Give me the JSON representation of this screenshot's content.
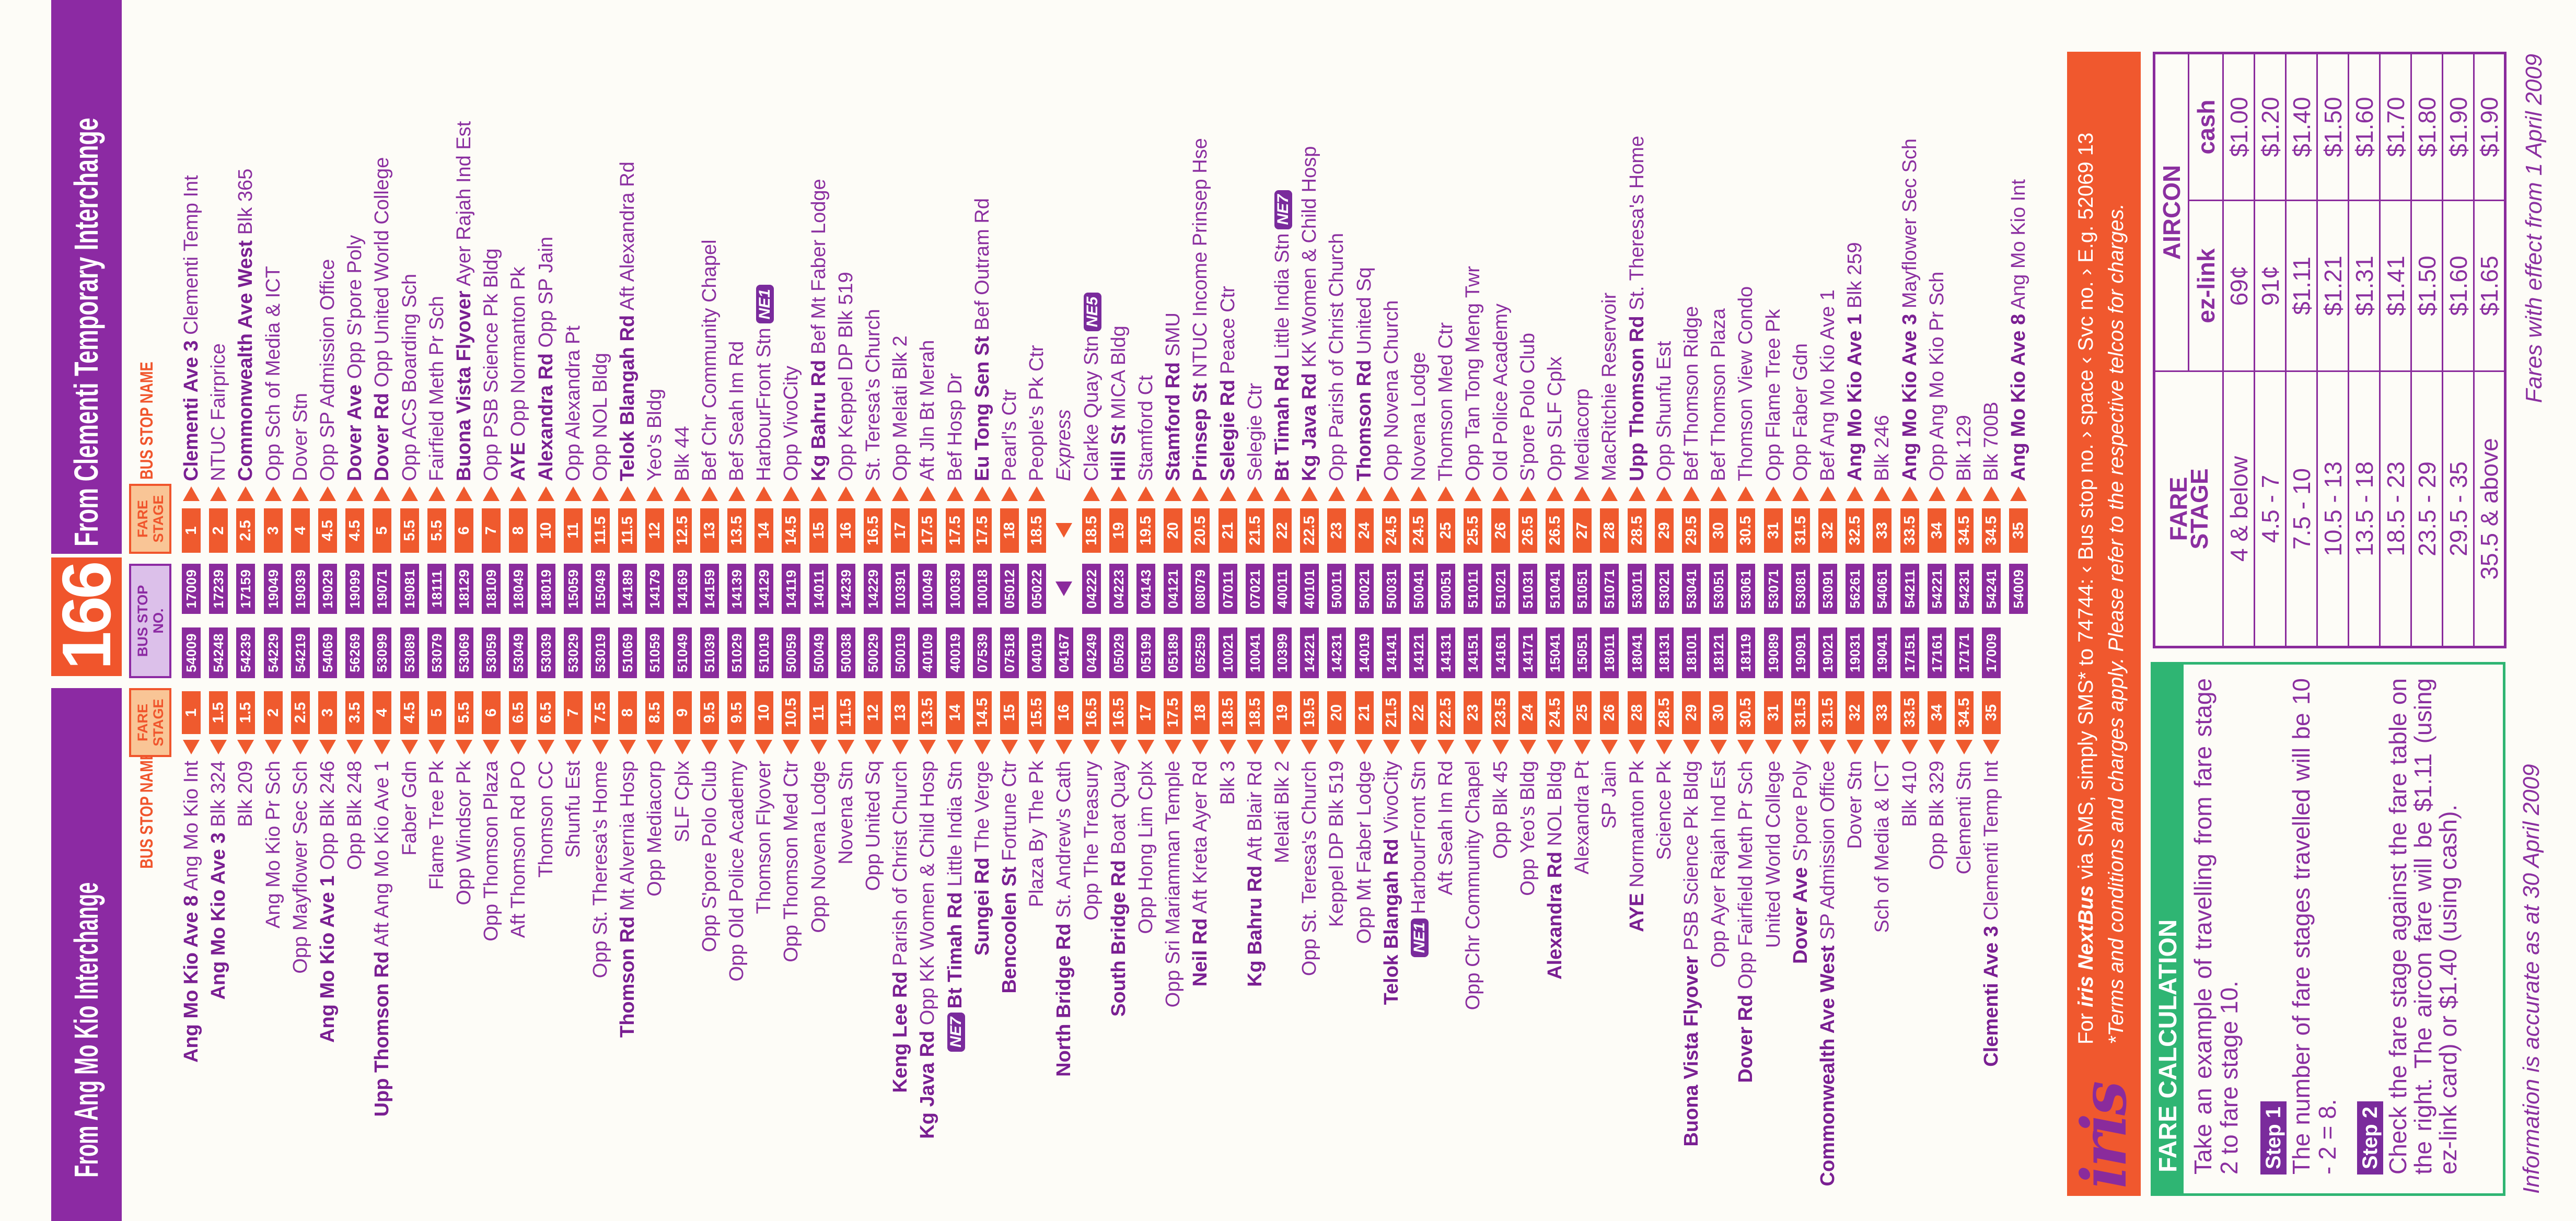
{
  "header": {
    "left_title": "From Ang Mo Kio Interchange",
    "route": "166",
    "right_title": "From Clementi Temporary Interchange"
  },
  "column_headers": {
    "name": "BUS STOP NAME",
    "fare_l1": "FARE",
    "fare_l2": "STAGE",
    "stop_l1": "BUS STOP",
    "stop_l2": "NO."
  },
  "colors": {
    "purple": "#8c2aa3",
    "orange": "#f0552c",
    "green": "#2fb573"
  },
  "left": {
    "stops": [
      {
        "r": "Ang Mo Kio Ave 8",
        "d": "Ang Mo Kio Int",
        "f": "1",
        "n": "54009"
      },
      {
        "r": "Ang Mo Kio Ave 3",
        "d": "Blk 324",
        "f": "1.5",
        "n": "54248"
      },
      {
        "r": "",
        "d": "Blk 209",
        "f": "1.5",
        "n": "54239"
      },
      {
        "r": "",
        "d": "Ang Mo Kio Pr Sch",
        "f": "2",
        "n": "54229"
      },
      {
        "r": "",
        "d": "Opp Mayflower Sec Sch",
        "f": "2.5",
        "n": "54219"
      },
      {
        "r": "Ang Mo Kio Ave 1",
        "d": "Opp Blk 246",
        "f": "3",
        "n": "54069"
      },
      {
        "r": "",
        "d": "Opp Blk 248",
        "f": "3.5",
        "n": "56269"
      },
      {
        "r": "Upp Thomson Rd",
        "d": "Aft Ang Mo Kio Ave 1",
        "f": "4",
        "n": "53099"
      },
      {
        "r": "",
        "d": "Faber Gdn",
        "f": "4.5",
        "n": "53089"
      },
      {
        "r": "",
        "d": "Flame Tree Pk",
        "f": "5",
        "n": "53079"
      },
      {
        "r": "",
        "d": "Opp Windsor Pk",
        "f": "5.5",
        "n": "53069"
      },
      {
        "r": "",
        "d": "Opp Thomson Plaza",
        "f": "6",
        "n": "53059"
      },
      {
        "r": "",
        "d": "Aft Thomson Rd PO",
        "f": "6.5",
        "n": "53049"
      },
      {
        "r": "",
        "d": "Thomson CC",
        "f": "6.5",
        "n": "53039"
      },
      {
        "r": "",
        "d": "Shunfu Est",
        "f": "7",
        "n": "53029"
      },
      {
        "r": "",
        "d": "Opp St. Theresa's Home",
        "f": "7.5",
        "n": "53019"
      },
      {
        "r": "Thomson Rd",
        "d": "Mt Alvernia Hosp",
        "f": "8",
        "n": "51069"
      },
      {
        "r": "",
        "d": "Opp Mediacorp",
        "f": "8.5",
        "n": "51059"
      },
      {
        "r": "",
        "d": "SLF Cplx",
        "f": "9",
        "n": "51049"
      },
      {
        "r": "",
        "d": "Opp S'pore Polo Club",
        "f": "9.5",
        "n": "51039"
      },
      {
        "r": "",
        "d": "Opp Old Police Academy",
        "f": "9.5",
        "n": "51029"
      },
      {
        "r": "",
        "d": "Thomson Flyover",
        "f": "10",
        "n": "51019"
      },
      {
        "r": "",
        "d": "Opp Thomson Med Ctr",
        "f": "10.5",
        "n": "50059"
      },
      {
        "r": "",
        "d": "Opp Novena Lodge",
        "f": "11",
        "n": "50049"
      },
      {
        "r": "",
        "d": "Novena Stn",
        "f": "11.5",
        "n": "50038"
      },
      {
        "r": "",
        "d": "Opp United Sq",
        "f": "12",
        "n": "50029"
      },
      {
        "r": "Keng Lee Rd",
        "d": "Parish of Christ Church",
        "f": "13",
        "n": "50019"
      },
      {
        "r": "Kg Java Rd",
        "d": "Opp KK Women & Child Hosp",
        "f": "13.5",
        "n": "40109"
      },
      {
        "r": "Bt Timah Rd",
        "d": "Little India Stn",
        "f": "14",
        "n": "40019",
        "mrt": "NE7"
      },
      {
        "r": "Sungei Rd",
        "d": "The Verge",
        "f": "14.5",
        "n": "07539"
      },
      {
        "r": "Bencoolen St",
        "d": "Fortune Ctr",
        "f": "15",
        "n": "07518"
      },
      {
        "r": "",
        "d": "Plaza By The Pk",
        "f": "15.5",
        "n": "04019"
      },
      {
        "r": "North Bridge Rd",
        "d": "St. Andrew's Cath",
        "f": "16",
        "n": "04167"
      },
      {
        "r": "",
        "d": "Opp The Treasury",
        "f": "16.5",
        "n": "04249"
      },
      {
        "r": "South Bridge Rd",
        "d": "Boat Quay",
        "f": "16.5",
        "n": "05029"
      },
      {
        "r": "",
        "d": "Opp Hong Lim Cplx",
        "f": "17",
        "n": "05199"
      },
      {
        "r": "",
        "d": "Opp Sri Mariamman Temple",
        "f": "17.5",
        "n": "05189"
      },
      {
        "r": "Neil Rd",
        "d": "Aft Kreta Ayer Rd",
        "f": "18",
        "n": "05259"
      },
      {
        "r": "",
        "d": "Blk 3",
        "f": "18.5",
        "n": "10021"
      },
      {
        "r": "Kg Bahru Rd",
        "d": "Aft Blair Rd",
        "f": "18.5",
        "n": "10041"
      },
      {
        "r": "",
        "d": "Melati Blk 2",
        "f": "19",
        "n": "10399"
      },
      {
        "r": "",
        "d": "Opp St. Teresa's Church",
        "f": "19.5",
        "n": "14221"
      },
      {
        "r": "",
        "d": "Keppel DP Blk 519",
        "f": "20",
        "n": "14231"
      },
      {
        "r": "",
        "d": "Opp Mt Faber Lodge",
        "f": "21",
        "n": "14019"
      },
      {
        "r": "Telok Blangah Rd",
        "d": "VivoCity",
        "f": "21.5",
        "n": "14141"
      },
      {
        "r": "",
        "d": "HarbourFront Stn",
        "f": "22",
        "n": "14121",
        "mrt": "NE1"
      },
      {
        "r": "",
        "d": "Aft Seah Im Rd",
        "f": "22.5",
        "n": "14131"
      },
      {
        "r": "",
        "d": "Opp Chr Community Chapel",
        "f": "23",
        "n": "14151"
      },
      {
        "r": "",
        "d": "Opp Blk 45",
        "f": "23.5",
        "n": "14161"
      },
      {
        "r": "",
        "d": "Opp Yeo's Bldg",
        "f": "24",
        "n": "14171"
      },
      {
        "r": "Alexandra Rd",
        "d": "NOL Bldg",
        "f": "24.5",
        "n": "15041"
      },
      {
        "r": "",
        "d": "Alexandra Pt",
        "f": "25",
        "n": "15051"
      },
      {
        "r": "",
        "d": "SP Jain",
        "f": "26",
        "n": "18011"
      },
      {
        "r": "AYE",
        "d": "Normanton Pk",
        "f": "28",
        "n": "18041"
      },
      {
        "r": "",
        "d": "Science Pk",
        "f": "28.5",
        "n": "18131"
      },
      {
        "r": "Buona Vista Flyover",
        "d": "PSB Science Pk Bldg",
        "f": "29",
        "n": "18101"
      },
      {
        "r": "",
        "d": "Opp Ayer Rajah Ind Est",
        "f": "30",
        "n": "18121"
      },
      {
        "r": "Dover Rd",
        "d": "Opp Fairfield Meth Pr Sch",
        "f": "30.5",
        "n": "18119"
      },
      {
        "r": "",
        "d": "United World College",
        "f": "31",
        "n": "19089"
      },
      {
        "r": "Dover Ave",
        "d": "S'pore Poly",
        "f": "31.5",
        "n": "19091"
      },
      {
        "r": "Commonwealth Ave West",
        "d": "SP Admission Office",
        "f": "31.5",
        "n": "19021"
      },
      {
        "r": "",
        "d": "Dover Stn",
        "f": "32",
        "n": "19031"
      },
      {
        "r": "",
        "d": "Sch of Media & ICT",
        "f": "33",
        "n": "19041"
      },
      {
        "r": "",
        "d": "Blk 410",
        "f": "33.5",
        "n": "17151"
      },
      {
        "r": "",
        "d": "Opp Blk 329",
        "f": "34",
        "n": "17161"
      },
      {
        "r": "",
        "d": "Clementi Stn",
        "f": "34.5",
        "n": "17171"
      },
      {
        "r": "Clementi Ave 3",
        "d": "Clementi Temp Int",
        "f": "35",
        "n": "17009"
      }
    ]
  },
  "right": {
    "stops": [
      {
        "r": "Clementi Ave 3",
        "d": "Clementi Temp Int",
        "f": "1",
        "n": "17009"
      },
      {
        "r": "",
        "d": "NTUC Fairprice",
        "f": "2",
        "n": "17239"
      },
      {
        "r": "Commonwealth Ave West",
        "d": "Blk 365",
        "f": "2.5",
        "n": "17159"
      },
      {
        "r": "",
        "d": "Opp Sch of Media & ICT",
        "f": "3",
        "n": "19049"
      },
      {
        "r": "",
        "d": "Dover Stn",
        "f": "4",
        "n": "19039"
      },
      {
        "r": "",
        "d": "Opp SP Admission Office",
        "f": "4.5",
        "n": "19029"
      },
      {
        "r": "Dover Ave",
        "d": "Opp S'pore Poly",
        "f": "4.5",
        "n": "19099"
      },
      {
        "r": "Dover Rd",
        "d": "Opp United World College",
        "f": "5",
        "n": "19071"
      },
      {
        "r": "",
        "d": "Opp ACS Boarding Sch",
        "f": "5.5",
        "n": "19081"
      },
      {
        "r": "",
        "d": "Fairfield Meth Pr Sch",
        "f": "5.5",
        "n": "18111"
      },
      {
        "r": "Buona Vista Flyover",
        "d": "Ayer Rajah Ind Est",
        "f": "6",
        "n": "18129"
      },
      {
        "r": "",
        "d": "Opp PSB Science Pk Bldg",
        "f": "7",
        "n": "18109"
      },
      {
        "r": "AYE",
        "d": "Opp Normanton Pk",
        "f": "8",
        "n": "18049"
      },
      {
        "r": "Alexandra Rd",
        "d": "Opp SP Jain",
        "f": "10",
        "n": "18019"
      },
      {
        "r": "",
        "d": "Opp Alexandra Pt",
        "f": "11",
        "n": "15059"
      },
      {
        "r": "",
        "d": "Opp NOL Bldg",
        "f": "11.5",
        "n": "15049"
      },
      {
        "r": "Telok Blangah Rd",
        "d": "Aft Alexandra Rd",
        "f": "11.5",
        "n": "14189"
      },
      {
        "r": "",
        "d": "Yeo's Bldg",
        "f": "12",
        "n": "14179"
      },
      {
        "r": "",
        "d": "Blk 44",
        "f": "12.5",
        "n": "14169"
      },
      {
        "r": "",
        "d": "Bef Chr Community Chapel",
        "f": "13",
        "n": "14159"
      },
      {
        "r": "",
        "d": "Bef Seah Im Rd",
        "f": "13.5",
        "n": "14139"
      },
      {
        "r": "",
        "d": "HarbourFront Stn",
        "f": "14",
        "n": "14129",
        "mrt": "NE1"
      },
      {
        "r": "",
        "d": "Opp VivoCity",
        "f": "14.5",
        "n": "14119"
      },
      {
        "r": "Kg Bahru Rd",
        "d": "Bef Mt Faber Lodge",
        "f": "15",
        "n": "14011"
      },
      {
        "r": "",
        "d": "Opp Keppel DP Blk 519",
        "f": "16",
        "n": "14239"
      },
      {
        "r": "",
        "d": "St. Teresa's Church",
        "f": "16.5",
        "n": "14229"
      },
      {
        "r": "",
        "d": "Opp Melati Blk 2",
        "f": "17",
        "n": "10391"
      },
      {
        "r": "",
        "d": "Aft Jln Bt Merah",
        "f": "17.5",
        "n": "10049"
      },
      {
        "r": "",
        "d": "Bef Hosp Dr",
        "f": "17.5",
        "n": "10039"
      },
      {
        "r": "Eu Tong Sen St",
        "d": "Bef Outram Rd",
        "f": "17.5",
        "n": "10018"
      },
      {
        "r": "",
        "d": "Pearl's Ctr",
        "f": "18",
        "n": "05012"
      },
      {
        "r": "",
        "d": "People's Pk Ctr",
        "f": "18.5",
        "n": "05022"
      },
      {
        "express": "Express"
      },
      {
        "r": "",
        "d": "Clarke Quay Stn",
        "f": "18.5",
        "n": "04222",
        "mrt": "NE5"
      },
      {
        "r": "Hill St",
        "d": "MICA Bldg",
        "f": "19",
        "n": "04223"
      },
      {
        "r": "",
        "d": "Stamford Ct",
        "f": "19.5",
        "n": "04143"
      },
      {
        "r": "Stamford Rd",
        "d": "SMU",
        "f": "20",
        "n": "04121"
      },
      {
        "r": "Prinsep St",
        "d": "NTUC Income Prinsep Hse",
        "f": "20.5",
        "n": "08079"
      },
      {
        "r": "Selegie Rd",
        "d": "Peace Ctr",
        "f": "21",
        "n": "07011"
      },
      {
        "r": "",
        "d": "Selegie Ctr",
        "f": "21.5",
        "n": "07021"
      },
      {
        "r": "Bt Timah Rd",
        "d": "Little India Stn",
        "f": "22",
        "n": "40011",
        "mrt": "NE7"
      },
      {
        "r": "Kg Java Rd",
        "d": "KK Women & Child Hosp",
        "f": "22.5",
        "n": "40101"
      },
      {
        "r": "",
        "d": "Opp Parish of Christ Church",
        "f": "23",
        "n": "50011"
      },
      {
        "r": "Thomson Rd",
        "d": "United Sq",
        "f": "24",
        "n": "50021"
      },
      {
        "r": "",
        "d": "Opp Novena Church",
        "f": "24.5",
        "n": "50031"
      },
      {
        "r": "",
        "d": "Novena Lodge",
        "f": "24.5",
        "n": "50041"
      },
      {
        "r": "",
        "d": "Thomson Med Ctr",
        "f": "25",
        "n": "50051"
      },
      {
        "r": "",
        "d": "Opp Tan Tong Meng Twr",
        "f": "25.5",
        "n": "51011"
      },
      {
        "r": "",
        "d": "Old Police Academy",
        "f": "26",
        "n": "51021"
      },
      {
        "r": "",
        "d": "S'pore Polo Club",
        "f": "26.5",
        "n": "51031"
      },
      {
        "r": "",
        "d": "Opp SLF Cplx",
        "f": "26.5",
        "n": "51041"
      },
      {
        "r": "",
        "d": "Mediacorp",
        "f": "27",
        "n": "51051"
      },
      {
        "r": "",
        "d": "MacRitchie Reservoir",
        "f": "28",
        "n": "51071"
      },
      {
        "r": "Upp Thomson Rd",
        "d": "St. Theresa's Home",
        "f": "28.5",
        "n": "53011"
      },
      {
        "r": "",
        "d": "Opp Shunfu Est",
        "f": "29",
        "n": "53021"
      },
      {
        "r": "",
        "d": "Bef Thomson Ridge",
        "f": "29.5",
        "n": "53041"
      },
      {
        "r": "",
        "d": "Bef Thomson Plaza",
        "f": "30",
        "n": "53051"
      },
      {
        "r": "",
        "d": "Thomson View Condo",
        "f": "30.5",
        "n": "53061"
      },
      {
        "r": "",
        "d": "Opp Flame Tree Pk",
        "f": "31",
        "n": "53071"
      },
      {
        "r": "",
        "d": "Opp Faber Gdn",
        "f": "31.5",
        "n": "53081"
      },
      {
        "r": "",
        "d": "Bef Ang Mo Kio Ave 1",
        "f": "32",
        "n": "53091"
      },
      {
        "r": "Ang Mo Kio Ave 1",
        "d": "Blk 259",
        "f": "32.5",
        "n": "56261"
      },
      {
        "r": "",
        "d": "Blk 246",
        "f": "33",
        "n": "54061"
      },
      {
        "r": "Ang Mo Kio Ave 3",
        "d": "Mayflower Sec Sch",
        "f": "33.5",
        "n": "54211"
      },
      {
        "r": "",
        "d": "Opp Ang Mo Kio Pr Sch",
        "f": "34",
        "n": "54221"
      },
      {
        "r": "",
        "d": "Blk 129",
        "f": "34.5",
        "n": "54231"
      },
      {
        "r": "",
        "d": "Blk 700B",
        "f": "34.5",
        "n": "54241"
      },
      {
        "r": "Ang Mo Kio Ave 8",
        "d": "Ang Mo Kio Int",
        "f": "35",
        "n": "54009"
      }
    ]
  },
  "iris": {
    "logo": "iris",
    "line1_pre": "For ",
    "line1_brand": "iris NextBus",
    "line1_post": " via SMS, simply SMS* to 74744: ‹ Bus stop no. › space ‹ Svc no. › E.g. 52069 13",
    "line2": "*Terms and conditions and charges apply. Please refer to the respective telcos for charges."
  },
  "fare_calc": {
    "title": "FARE CALCULATION",
    "intro": "Take an example of travelling from fare stage 2 to fare stage 10.",
    "step1_label": "Step 1",
    "step1_text": "The number of fare stages travelled will be 10 - 2 = 8.",
    "step2_label": "Step 2",
    "step2_text": "Check the fare stage against the fare table on the right. The aircon fare will be $1.11 (using ez-link card) or $1.40 (using cash)."
  },
  "fare_table": {
    "stage_l1": "FARE",
    "stage_l2": "STAGE",
    "aircon": "AIRCON",
    "ezlink": "ez-link",
    "cash": "cash",
    "rows": [
      [
        "4 & below",
        "69¢",
        "$1.00"
      ],
      [
        "4.5 - 7",
        "91¢",
        "$1.20"
      ],
      [
        "7.5 - 10",
        "$1.11",
        "$1.40"
      ],
      [
        "10.5 - 13",
        "$1.21",
        "$1.50"
      ],
      [
        "13.5 - 18",
        "$1.31",
        "$1.60"
      ],
      [
        "18.5 - 23",
        "$1.41",
        "$1.70"
      ],
      [
        "23.5 - 29",
        "$1.50",
        "$1.80"
      ],
      [
        "29.5 - 35",
        "$1.60",
        "$1.90"
      ],
      [
        "35.5 & above",
        "$1.65",
        "$1.90"
      ]
    ]
  },
  "footnotes": {
    "info": "Information is accurate as at 30 April 2009",
    "fares": "Fares with effect from 1 April 2009"
  }
}
